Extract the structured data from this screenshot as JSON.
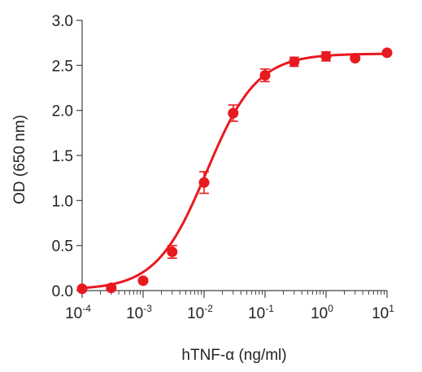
{
  "chart_data": {
    "type": "scatter",
    "title": "",
    "xlabel": "hTNF-α (ng/ml)",
    "ylabel": "OD (650 nm)",
    "x_scale": "log",
    "xlim": [
      0.0001,
      10
    ],
    "ylim": [
      0,
      3.0
    ],
    "x_ticks": [
      {
        "base": "10",
        "exp": "-4"
      },
      {
        "base": "10",
        "exp": "-3"
      },
      {
        "base": "10",
        "exp": "-2"
      },
      {
        "base": "10",
        "exp": "-1"
      },
      {
        "base": "10",
        "exp": "0"
      },
      {
        "base": "10",
        "exp": "1"
      }
    ],
    "y_ticks": [
      "0.0",
      "0.5",
      "1.0",
      "1.5",
      "2.0",
      "2.5",
      "3.0"
    ],
    "grid": false,
    "legend": "none",
    "color": "#e8191f",
    "series": [
      {
        "x": [
          0.0001,
          0.0003,
          0.001,
          0.003,
          0.01,
          0.03,
          0.1,
          0.3,
          1,
          3,
          10
        ],
        "y": [
          0.02,
          0.03,
          0.11,
          0.43,
          1.2,
          1.97,
          2.39,
          2.54,
          2.6,
          2.58,
          2.64
        ],
        "err": [
          0.0,
          0.02,
          0.02,
          0.07,
          0.12,
          0.09,
          0.07,
          0.05,
          0.05,
          0.0,
          0.0
        ]
      }
    ],
    "fit_curve": {
      "model": "4PL",
      "bottom": 0.01,
      "top": 2.63,
      "ec50": 0.011,
      "hill": 1.05
    }
  }
}
